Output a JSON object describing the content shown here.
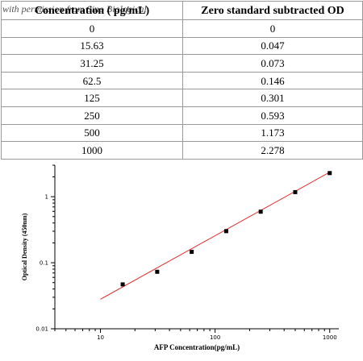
{
  "table": {
    "headers": [
      "Concentration ( pg/mL)",
      "Zero standard subtracted OD"
    ],
    "watermark": "with permission from Sino Biological",
    "rows": [
      [
        "0",
        "0"
      ],
      [
        "15.63",
        "0.047"
      ],
      [
        "31.25",
        "0.073"
      ],
      [
        "62.5",
        "0.146"
      ],
      [
        "125",
        "0.301"
      ],
      [
        "250",
        "0.593"
      ],
      [
        "500",
        "1.173"
      ],
      [
        "1000",
        "2.278"
      ]
    ]
  },
  "chart_data": {
    "type": "scatter",
    "x_scale": "log",
    "y_scale": "log",
    "xlabel": "AFP  Concentration(pg/mL)",
    "ylabel": "Optical Density (450nm)",
    "xlim": [
      4,
      1200
    ],
    "ylim": [
      0.01,
      3
    ],
    "x_ticks": [
      {
        "value": 10,
        "label": "10"
      },
      {
        "value": 100,
        "label": "100"
      },
      {
        "value": 1000,
        "label": "1000"
      }
    ],
    "y_ticks": [
      {
        "value": 0.01,
        "label": "0.01"
      },
      {
        "value": 0.1,
        "label": "0.1"
      },
      {
        "value": 1,
        "label": "1"
      }
    ],
    "points": [
      {
        "x": 15.63,
        "y": 0.047
      },
      {
        "x": 31.25,
        "y": 0.073
      },
      {
        "x": 62.5,
        "y": 0.146
      },
      {
        "x": 125,
        "y": 0.301
      },
      {
        "x": 250,
        "y": 0.593
      },
      {
        "x": 500,
        "y": 1.173
      },
      {
        "x": 1000,
        "y": 2.278
      }
    ],
    "fit_line": {
      "x_start": 10,
      "y_start": 0.028,
      "x_end": 1000,
      "y_end": 2.35,
      "color": "#e03030"
    },
    "marker_color": "#000000",
    "grid": false
  }
}
